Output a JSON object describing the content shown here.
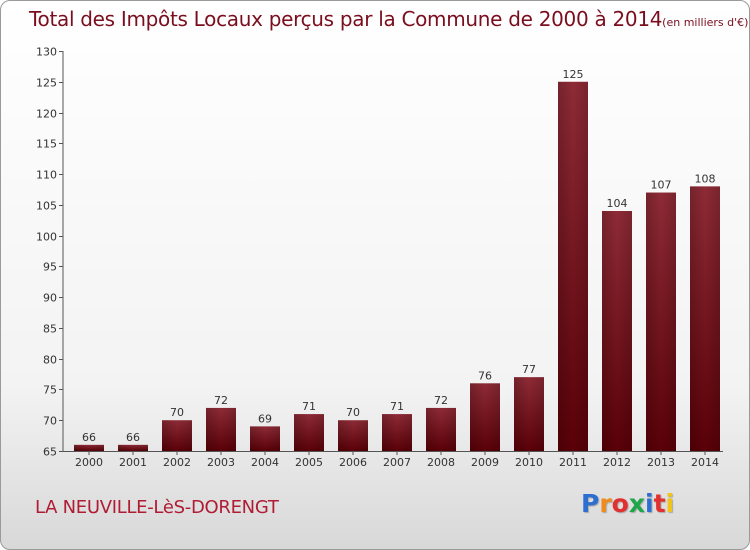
{
  "title": "Total des Impôts Locaux perçus par la Commune de 2000 à 2014",
  "unit": "(en milliers d'€)",
  "commune": "LA NEUVILLE-LèS-DORENGT",
  "logo": {
    "text": "Proxiti",
    "colors": [
      "#2c6fd1",
      "#f08a1c",
      "#e22f2f",
      "#1ea64b",
      "#2c6fd1",
      "#e22f2f",
      "#f0c419"
    ]
  },
  "chart_data": {
    "type": "bar",
    "categories": [
      "2000",
      "2001",
      "2002",
      "2003",
      "2004",
      "2005",
      "2006",
      "2007",
      "2008",
      "2009",
      "2010",
      "2011",
      "2012",
      "2013",
      "2014"
    ],
    "values": [
      66,
      66,
      70,
      72,
      69,
      71,
      70,
      71,
      72,
      76,
      77,
      125,
      104,
      107,
      108
    ],
    "ylim": [
      65,
      130
    ],
    "yticks": [
      65,
      70,
      75,
      80,
      85,
      90,
      95,
      100,
      105,
      110,
      115,
      120,
      125,
      130
    ],
    "bar_color": "#7a1020",
    "grid": false
  }
}
